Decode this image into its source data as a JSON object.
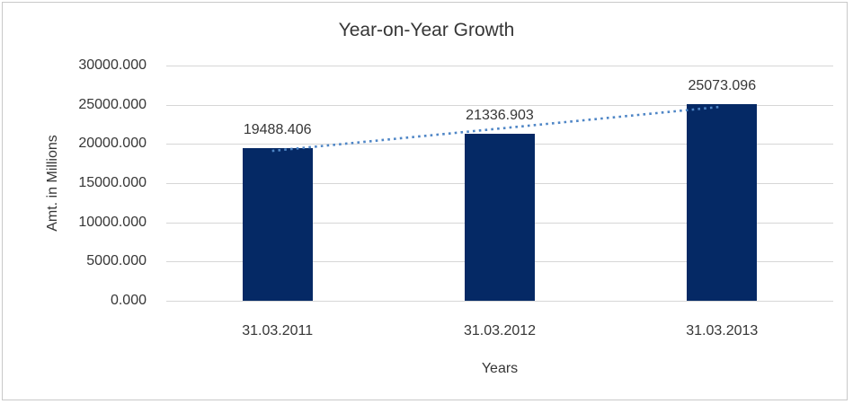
{
  "chart_data": {
    "type": "bar",
    "title": "Year-on-Year Growth",
    "xlabel": "Years",
    "ylabel": "Amt. in Millions",
    "categories": [
      "31.03.2011",
      "31.03.2012",
      "31.03.2013"
    ],
    "values": [
      19488.406,
      21336.903,
      25073.096
    ],
    "data_labels": [
      "19488.406",
      "21336.903",
      "25073.096"
    ],
    "ytick_labels": [
      "0.000",
      "5000.000",
      "10000.000",
      "15000.000",
      "20000.000",
      "25000.000",
      "30000.000"
    ],
    "ytick_values": [
      0,
      5000,
      10000,
      15000,
      20000,
      25000,
      30000
    ],
    "ylim": [
      0,
      30000
    ],
    "grid": true,
    "legend": false,
    "trendline": {
      "type": "linear",
      "style": "dotted"
    },
    "colors": {
      "bar": "#052965",
      "trendline": "#4F86C6",
      "gridline": "#D6D6D6",
      "text": "#363636",
      "frame_border": "#C9C9C9",
      "background": "#FFFFFF"
    }
  }
}
